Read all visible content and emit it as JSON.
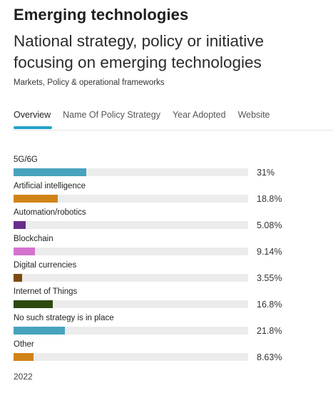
{
  "header": {
    "title": "Emerging technologies",
    "subtitle": "National strategy, policy or initiative focusing on emerging technologies",
    "caption": "Markets, Policy & operational frameworks"
  },
  "tabs": [
    {
      "label": "Overview",
      "active": true
    },
    {
      "label": "Name Of Policy Strategy",
      "active": false
    },
    {
      "label": "Year Adopted",
      "active": false
    },
    {
      "label": "Website",
      "active": false
    }
  ],
  "footer": {
    "year": "2022"
  },
  "colors": {
    "tab_accent": "#23a3c9",
    "track": "#ececec"
  },
  "chart_data": {
    "type": "bar",
    "orientation": "horizontal",
    "categories": [
      "5G/6G",
      "Artificial intelligence",
      "Automation/robotics",
      "Blockchain",
      "Digital currencies",
      "Internet of Things",
      "No such strategy is in place",
      "Other"
    ],
    "values": [
      31,
      18.8,
      5.08,
      9.14,
      3.55,
      16.8,
      21.8,
      8.63
    ],
    "value_labels": [
      "31%",
      "18.8%",
      "5.08%",
      "9.14%",
      "3.55%",
      "16.8%",
      "21.8%",
      "8.63%"
    ],
    "colors": [
      "#48a3bd",
      "#d08418",
      "#6a2d8f",
      "#d373cf",
      "#7d4a0e",
      "#2c4a10",
      "#48a3bd",
      "#d08418"
    ],
    "xlim": [
      0,
      100
    ],
    "grid": false,
    "legend": "none"
  }
}
